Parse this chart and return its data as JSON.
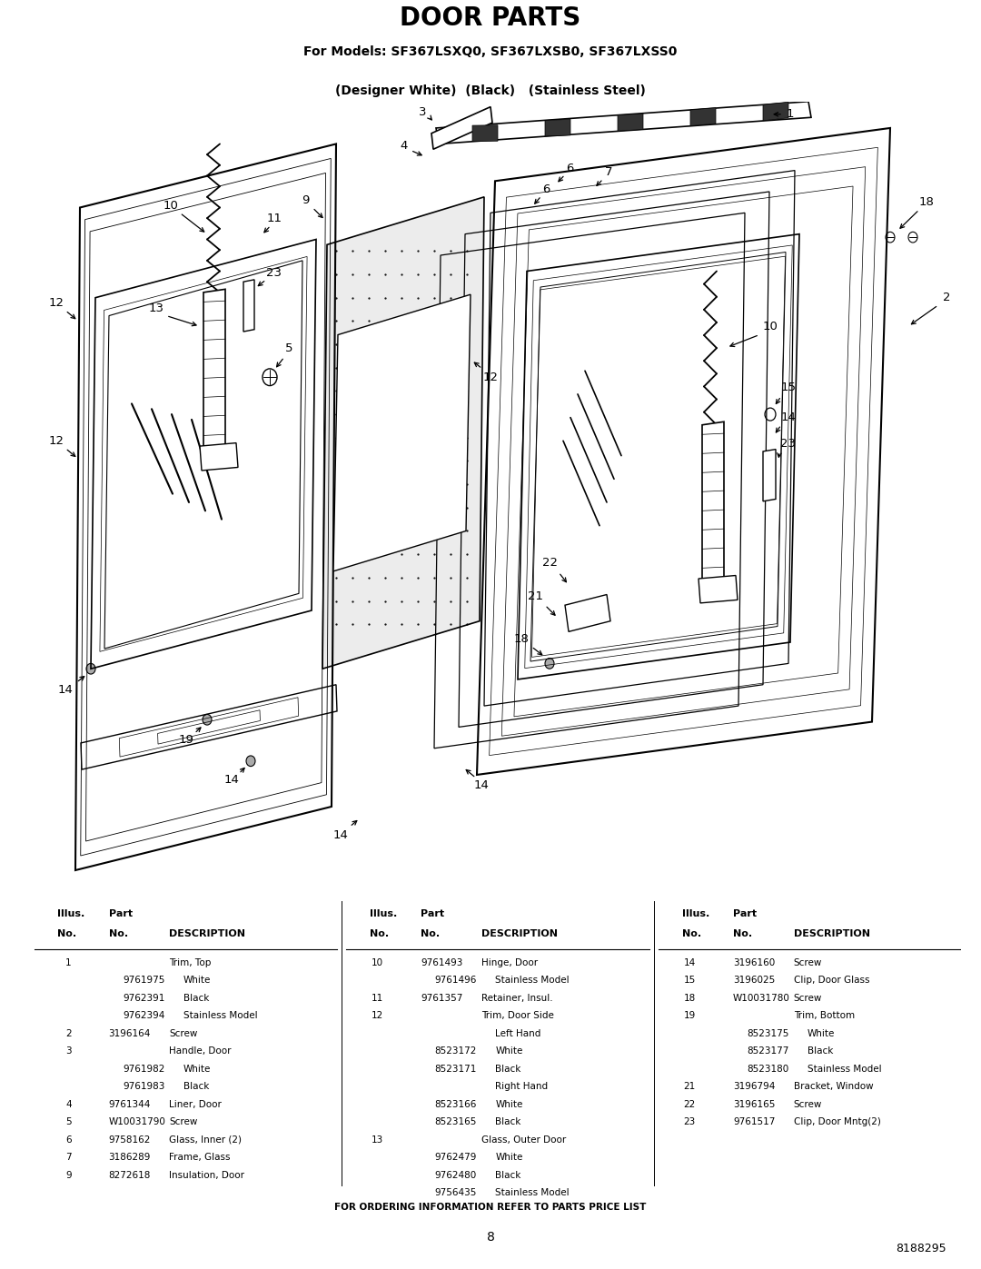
{
  "title": "DOOR PARTS",
  "subtitle1": "For Models: SF367LSXQ0, SF367LXSB0, SF367LXSS0",
  "subtitle2": "(Designer White)  (Black)   (Stainless Steel)",
  "bg_color": "#ffffff",
  "footer_text": "FOR ORDERING INFORMATION REFER TO PARTS PRICE LIST",
  "page_number": "8",
  "doc_number": "8188295",
  "parts_col1": [
    [
      "1",
      "",
      "Trim, Top"
    ],
    [
      "",
      "9761975",
      "White"
    ],
    [
      "",
      "9762391",
      "Black"
    ],
    [
      "",
      "9762394",
      "Stainless Model"
    ],
    [
      "2",
      "3196164",
      "Screw"
    ],
    [
      "3",
      "",
      "Handle, Door"
    ],
    [
      "",
      "9761982",
      "White"
    ],
    [
      "",
      "9761983",
      "Black"
    ],
    [
      "4",
      "9761344",
      "Liner, Door"
    ],
    [
      "5",
      "W10031790",
      "Screw"
    ],
    [
      "6",
      "9758162",
      "Glass, Inner (2)"
    ],
    [
      "7",
      "3186289",
      "Frame, Glass"
    ],
    [
      "9",
      "8272618",
      "Insulation, Door"
    ]
  ],
  "parts_col2": [
    [
      "10",
      "9761493",
      "Hinge, Door"
    ],
    [
      "",
      "9761496",
      "Stainless Model"
    ],
    [
      "11",
      "9761357",
      "Retainer, Insul."
    ],
    [
      "12",
      "",
      "Trim, Door Side"
    ],
    [
      "",
      "",
      "Left Hand"
    ],
    [
      "",
      "8523172",
      "White"
    ],
    [
      "",
      "8523171",
      "Black"
    ],
    [
      "",
      "",
      "Right Hand"
    ],
    [
      "",
      "8523166",
      "White"
    ],
    [
      "",
      "8523165",
      "Black"
    ],
    [
      "13",
      "",
      "Glass, Outer Door"
    ],
    [
      "",
      "9762479",
      "White"
    ],
    [
      "",
      "9762480",
      "Black"
    ],
    [
      "",
      "9756435",
      "Stainless Model"
    ]
  ],
  "parts_col3": [
    [
      "14",
      "3196160",
      "Screw"
    ],
    [
      "15",
      "3196025",
      "Clip, Door Glass"
    ],
    [
      "18",
      "W10031780",
      "Screw"
    ],
    [
      "19",
      "",
      "Trim, Bottom"
    ],
    [
      "",
      "8523175",
      "White"
    ],
    [
      "",
      "8523177",
      "Black"
    ],
    [
      "",
      "8523180",
      "Stainless Model"
    ],
    [
      "21",
      "3196794",
      "Bracket, Window"
    ],
    [
      "22",
      "3196165",
      "Screw"
    ],
    [
      "23",
      "9761517",
      "Clip, Door Mntg(2)"
    ]
  ]
}
